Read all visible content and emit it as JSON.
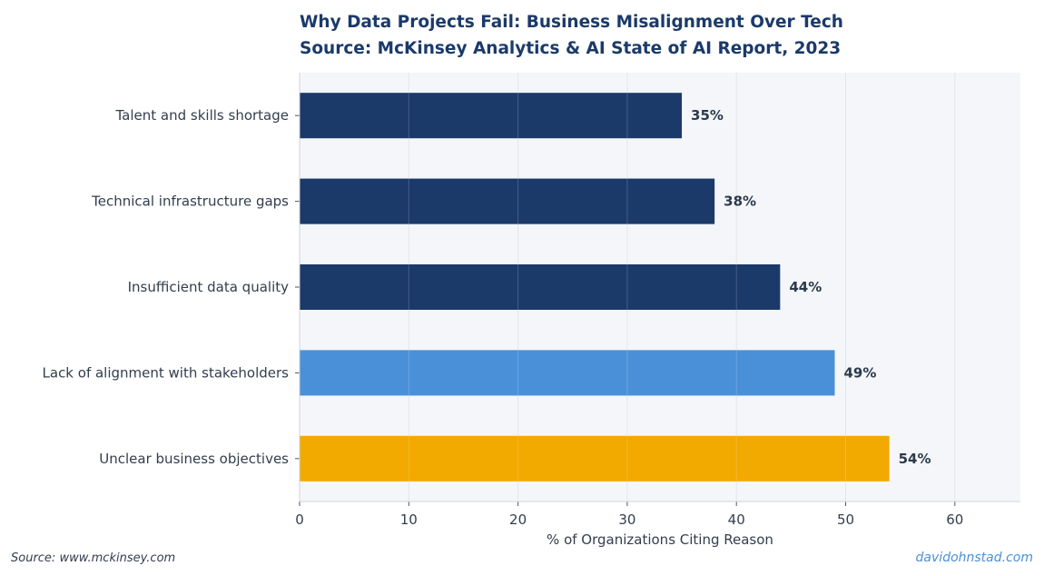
{
  "chart_data": {
    "type": "bar",
    "orientation": "horizontal",
    "title": "Why Data Projects Fail: Business Misalignment Over Tech",
    "subtitle": "Source: McKinsey Analytics & AI State of AI Report, 2023",
    "xlabel": "% of Organizations Citing Reason",
    "ylabel": "",
    "xlim": [
      0,
      66
    ],
    "xticks": [
      0,
      10,
      20,
      30,
      40,
      50,
      60
    ],
    "grid": true,
    "categories": [
      "Talent and skills shortage",
      "Technical infrastructure gaps",
      "Insufficient data quality",
      "Lack of alignment with stakeholders",
      "Unclear business objectives"
    ],
    "values": [
      35,
      38,
      44,
      49,
      54
    ],
    "value_labels": [
      "35%",
      "38%",
      "44%",
      "49%",
      "54%"
    ],
    "colors": [
      "#1b3a6a",
      "#1b3a6a",
      "#1b3a6a",
      "#4a90d9",
      "#f2a900"
    ]
  },
  "footer": {
    "source": "Source: www.mckinsey.com",
    "credit": "davidohnstad.com"
  },
  "style": {
    "plot_background": "#f4f6fa",
    "grid_color": "#dde2ea",
    "title_color": "#1b3a6a",
    "text_color": "#333d4d"
  }
}
